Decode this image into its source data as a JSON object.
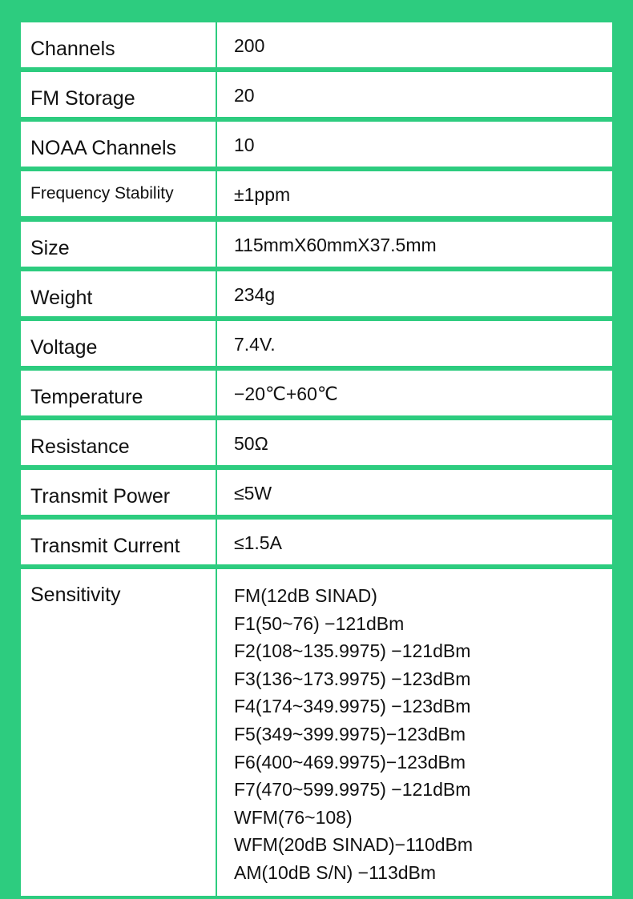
{
  "specs": [
    {
      "label": "Channels",
      "value": "200"
    },
    {
      "label": "FM Storage",
      "value": "20"
    },
    {
      "label": "NOAA Channels",
      "value": "10"
    },
    {
      "label": "Frequency Stability",
      "value": "±1ppm"
    },
    {
      "label": "Size",
      "value": "115mmX60mmX37.5mm"
    },
    {
      "label": "Weight",
      "value": "234g"
    },
    {
      "label": "Voltage",
      "value": "7.4V."
    },
    {
      "label": "Temperature",
      "value": "−20℃+60℃"
    },
    {
      "label": "Resistance",
      "value": "50Ω"
    },
    {
      "label": "Transmit Power",
      "value": "≤5W"
    },
    {
      "label": "Transmit Current",
      "value": "≤1.5A"
    }
  ],
  "sensitivity": {
    "label": "Sensitivity",
    "lines": [
      "FM(12dB SINAD)",
      "F1(50~76) −121dBm",
      "F2(108~135.9975) −121dBm",
      "F3(136~173.9975) −123dBm",
      "F4(174~349.9975) −123dBm",
      "F5(349~399.9975)−123dBm",
      "F6(400~469.9975)−123dBm",
      "F7(470~599.9975) −121dBm",
      "WFM(76~108)",
      "WFM(20dB SINAD)−110dBm",
      "AM(10dB S/N) −113dBm"
    ]
  },
  "colors": {
    "background": "#2dcc7f",
    "cell": "#ffffff"
  }
}
